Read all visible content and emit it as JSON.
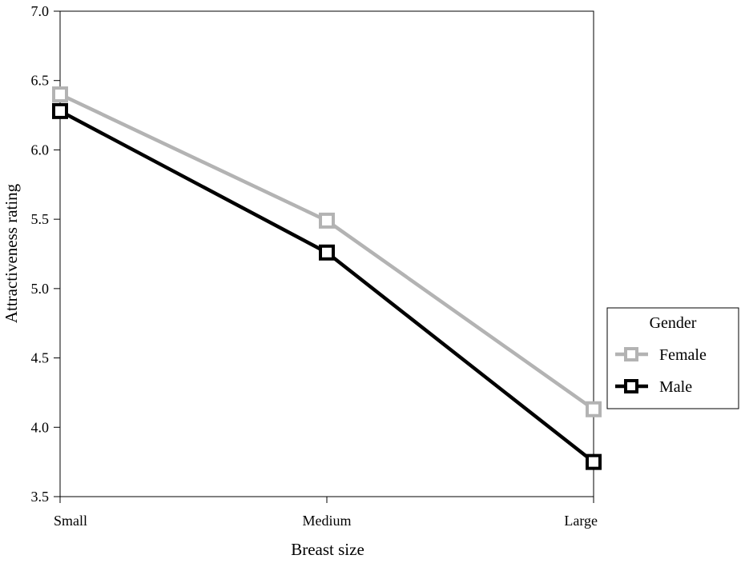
{
  "chart_data": {
    "type": "line",
    "categories": [
      "Small",
      "Medium",
      "Large"
    ],
    "series": [
      {
        "name": "Female",
        "values": [
          6.4,
          5.49,
          4.13
        ],
        "color": "#b3b3b3"
      },
      {
        "name": "Male",
        "values": [
          6.28,
          5.26,
          3.75
        ],
        "color": "#000000"
      }
    ],
    "xlabel": "Breast size",
    "ylabel": "Attractiveness rating",
    "ylim": [
      3.5,
      7.0
    ],
    "yticks": [
      3.5,
      4.0,
      4.5,
      5.0,
      5.5,
      6.0,
      6.5,
      7.0
    ],
    "ytick_labels": [
      "3.5",
      "4.0",
      "4.5",
      "5.0",
      "5.5",
      "6.0",
      "6.5",
      "7.0"
    ],
    "marker": "square-open",
    "grid": false,
    "legend": {
      "title": "Gender",
      "placement": "right"
    }
  }
}
